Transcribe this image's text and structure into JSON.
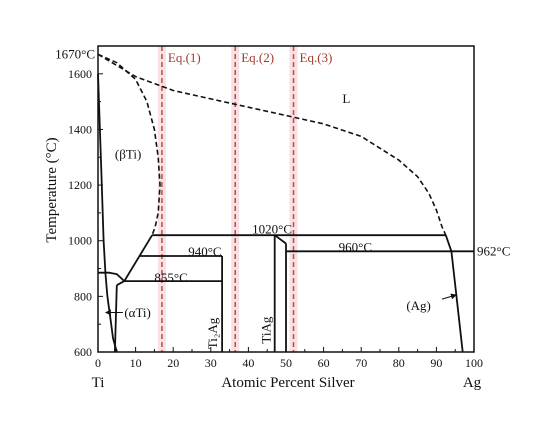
{
  "chart_data": {
    "type": "line",
    "title": "",
    "xlabel": "Atomic Percent Silver",
    "ylabel": "Temperature (°C)",
    "xlim": [
      0,
      100
    ],
    "ylim": [
      600,
      1700
    ],
    "xticks": [
      0,
      10,
      20,
      30,
      40,
      50,
      60,
      70,
      80,
      90,
      100
    ],
    "yticks": [
      600,
      800,
      1000,
      1200,
      1400,
      1600
    ],
    "x_end_labels": {
      "left": "Ti",
      "right": "Ag"
    },
    "colors": {
      "curve": "#111111",
      "band": "#f7c9d4",
      "band_line": "#b5533c",
      "eq_label": "#a0392b"
    },
    "regions": {
      "liquid": "L",
      "beta_ti": "(βTi)",
      "alpha_ti": "(αTi)",
      "ag": "(Ag)",
      "ti2ag": "Ti₂Ag",
      "tiag": "TiAg"
    },
    "temperature_labels": {
      "ti_melt": "1670°C",
      "peritectic": "1020°C",
      "t940": "940°C",
      "t960": "960°C",
      "ag_melt": "962°C",
      "t855": "855°C"
    },
    "equation_bands": [
      {
        "label": "Eq.(1)",
        "x": 17
      },
      {
        "label": "Eq.(2)",
        "x": 36.5
      },
      {
        "label": "Eq.(3)",
        "x": 52
      }
    ],
    "series": [
      {
        "style": "dashed",
        "x": [
          0,
          5,
          10,
          13,
          15,
          16,
          16.5,
          16,
          15.2,
          14.4
        ],
        "y": [
          1670,
          1640,
          1580,
          1500,
          1400,
          1300,
          1200,
          1100,
          1050,
          1020
        ]
      },
      {
        "style": "dashed",
        "x": [
          0,
          10,
          20,
          30,
          40,
          50,
          60,
          70,
          80,
          85,
          88,
          90,
          91.5,
          92.5
        ],
        "y": [
          1670,
          1590,
          1540,
          1510,
          1480,
          1450,
          1420,
          1375,
          1290,
          1230,
          1170,
          1110,
          1050,
          1020
        ]
      },
      {
        "style": "solid",
        "x": [
          0,
          0.5,
          1,
          1.5,
          2,
          2.5,
          3,
          3.5,
          4,
          5
        ],
        "y": [
          1600,
          1400,
          1200,
          1000,
          880,
          800,
          750,
          700,
          650,
          600
        ]
      },
      {
        "style": "solid",
        "x": [
          14.4,
          7
        ],
        "y": [
          1020,
          855
        ]
      },
      {
        "style": "solid",
        "x": [
          7,
          33
        ],
        "y": [
          855,
          855
        ]
      },
      {
        "style": "solid",
        "x": [
          0,
          3,
          5,
          7
        ],
        "y": [
          885,
          885,
          880,
          855
        ]
      },
      {
        "style": "solid",
        "x": [
          5,
          7
        ],
        "y": [
          840,
          855
        ]
      },
      {
        "style": "solid",
        "x": [
          4.5,
          5
        ],
        "y": [
          600,
          840
        ]
      },
      {
        "style": "solid",
        "x": [
          11,
          33
        ],
        "y": [
          945,
          945
        ]
      },
      {
        "style": "solid",
        "x": [
          33,
          33
        ],
        "y": [
          945,
          600
        ]
      },
      {
        "style": "solid",
        "x": [
          14.4,
          92.5
        ],
        "y": [
          1020,
          1020
        ]
      },
      {
        "style": "solid",
        "x": [
          47,
          47
        ],
        "y": [
          1020,
          600
        ]
      },
      {
        "style": "solid",
        "x": [
          47,
          50
        ],
        "y": [
          1020,
          990
        ]
      },
      {
        "style": "solid",
        "x": [
          50,
          50
        ],
        "y": [
          990,
          600
        ]
      },
      {
        "style": "solid",
        "x": [
          50,
          100
        ],
        "y": [
          962,
          962
        ]
      },
      {
        "style": "solid",
        "x": [
          92.5,
          94
        ],
        "y": [
          1020,
          962
        ]
      },
      {
        "style": "solid",
        "x": [
          94,
          95.5,
          97
        ],
        "y": [
          962,
          780,
          600
        ]
      }
    ]
  }
}
